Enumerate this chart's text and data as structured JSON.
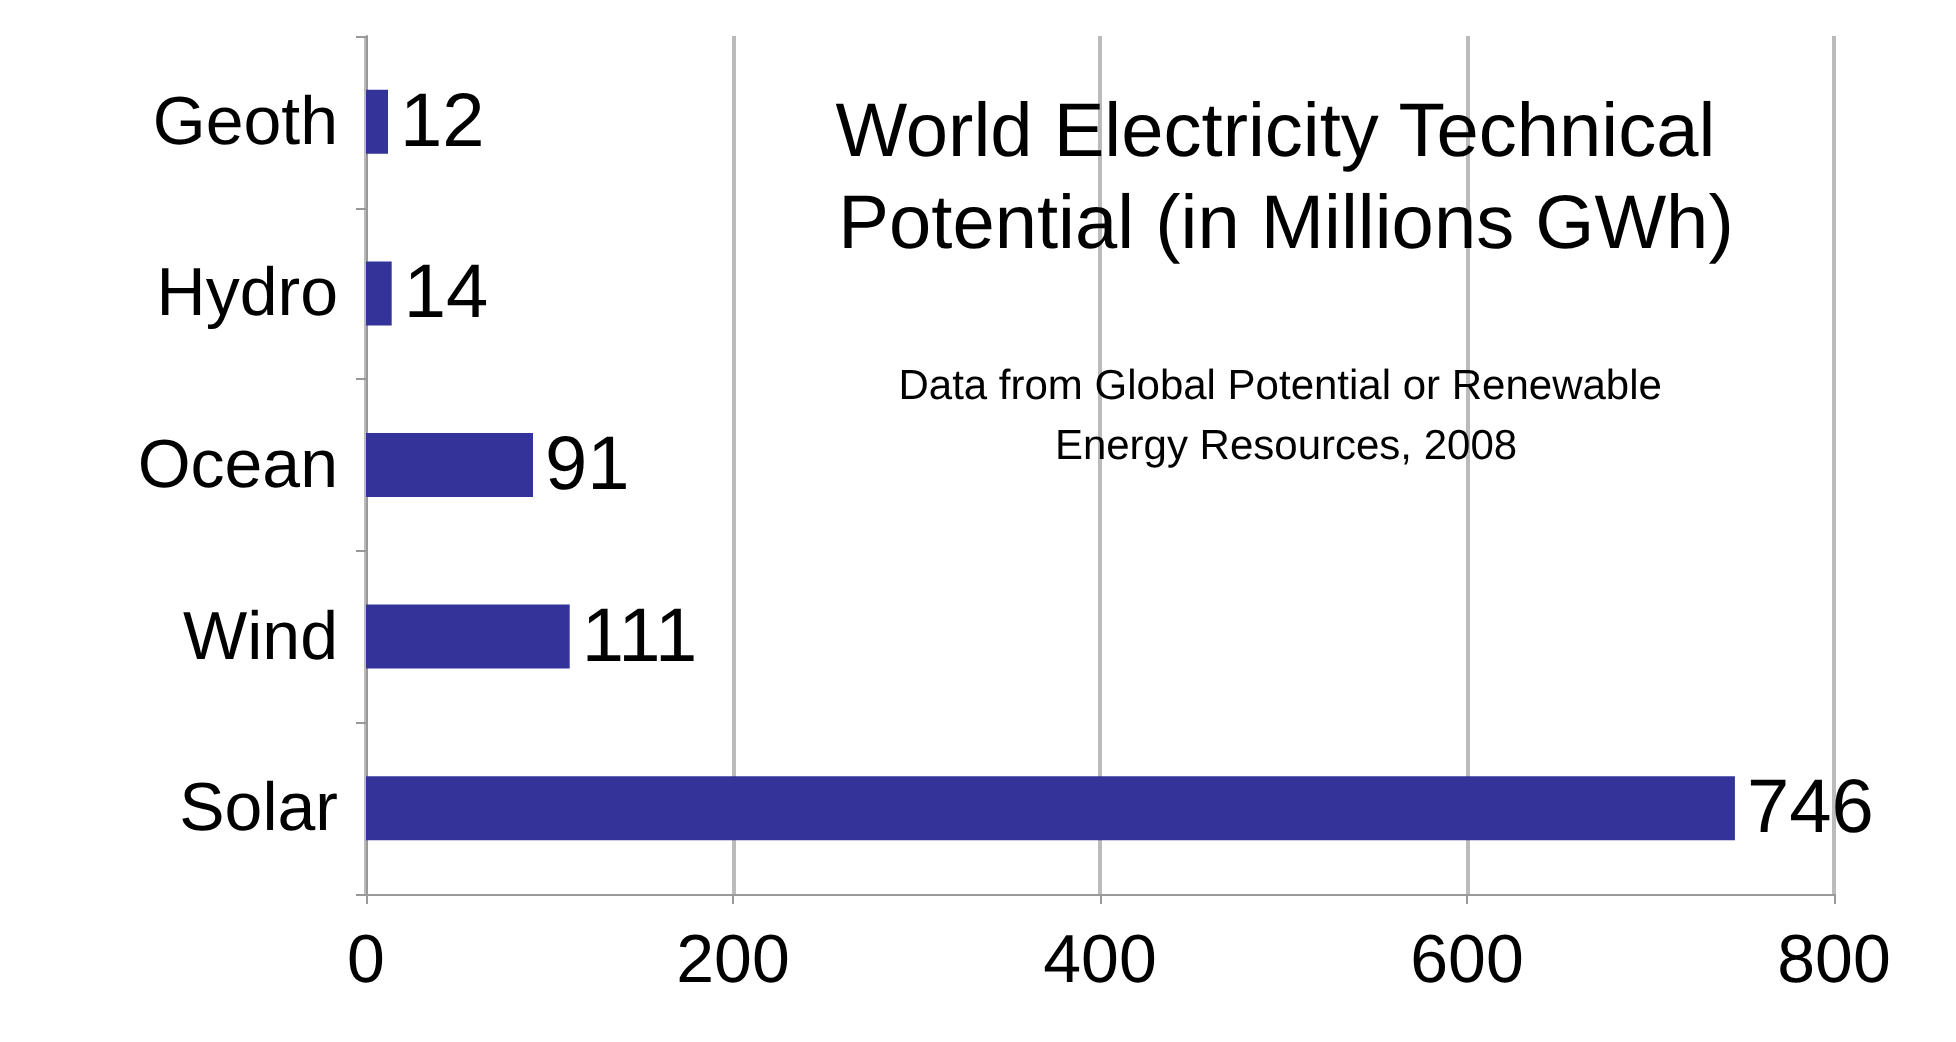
{
  "chart_data": {
    "type": "bar",
    "orientation": "horizontal",
    "title": "World Electricity Technical Potential (in Millions GWh)",
    "subtitle": "Data from Global Potential or Renewable Energy Resources, 2008",
    "categories": [
      "Geoth",
      "Hydro",
      "Ocean",
      "Wind",
      "Solar"
    ],
    "values": [
      12,
      14,
      91,
      111,
      746
    ],
    "color": "#333399",
    "xlim": [
      0,
      800
    ],
    "xticks": [
      0,
      200,
      400,
      600,
      800
    ],
    "grid": "x",
    "data_labels": true
  }
}
